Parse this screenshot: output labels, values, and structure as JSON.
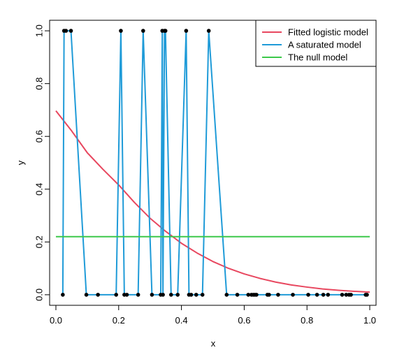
{
  "chart_data": {
    "type": "line",
    "title": "",
    "xlabel": "x",
    "ylabel": "y",
    "xlim": [
      -0.02,
      1.02
    ],
    "ylim": [
      -0.04,
      1.04
    ],
    "x_ticks": [
      "0.0",
      "0.2",
      "0.4",
      "0.6",
      "0.8",
      "1.0"
    ],
    "x_tick_values": [
      0.0,
      0.2,
      0.4,
      0.6,
      0.8,
      1.0
    ],
    "y_ticks": [
      "0.0",
      "0.2",
      "0.4",
      "0.6",
      "0.8",
      "1.0"
    ],
    "y_tick_values": [
      0.0,
      0.2,
      0.4,
      0.6,
      0.8,
      1.0
    ],
    "grid": false,
    "legend_position": "top-right",
    "points": {
      "x": [
        0.022,
        0.026,
        0.032,
        0.048,
        0.097,
        0.134,
        0.192,
        0.207,
        0.218,
        0.226,
        0.262,
        0.278,
        0.306,
        0.334,
        0.339,
        0.341,
        0.346,
        0.349,
        0.367,
        0.388,
        0.415,
        0.424,
        0.431,
        0.447,
        0.467,
        0.487,
        0.544,
        0.578,
        0.613,
        0.623,
        0.629,
        0.634,
        0.639,
        0.674,
        0.679,
        0.708,
        0.755,
        0.804,
        0.832,
        0.852,
        0.867,
        0.912,
        0.925,
        0.934,
        0.94,
        0.987,
        0.991
      ],
      "y": [
        0,
        1,
        1,
        1,
        0,
        0,
        0,
        1,
        0,
        0,
        0,
        1,
        0,
        0,
        1,
        0,
        1,
        1,
        0,
        0,
        1,
        0,
        0,
        0,
        0,
        1,
        0,
        0,
        0,
        0,
        0,
        0,
        0,
        0,
        0,
        0,
        0,
        0,
        0,
        0,
        0,
        0,
        0,
        0,
        0,
        0,
        0
      ]
    },
    "series": [
      {
        "name": "Fitted logistic model",
        "color": "#e8475f",
        "kind": "curve",
        "x": [
          0.0,
          0.05,
          0.1,
          0.15,
          0.2,
          0.25,
          0.3,
          0.35,
          0.4,
          0.45,
          0.5,
          0.55,
          0.6,
          0.65,
          0.7,
          0.75,
          0.8,
          0.85,
          0.9,
          0.95,
          1.0
        ],
        "values": [
          0.697,
          0.621,
          0.538,
          0.475,
          0.416,
          0.35,
          0.29,
          0.24,
          0.195,
          0.158,
          0.126,
          0.1,
          0.079,
          0.062,
          0.048,
          0.037,
          0.029,
          0.022,
          0.017,
          0.013,
          0.01
        ]
      },
      {
        "name": "A saturated model",
        "color": "#1f9bd8",
        "kind": "connect-points"
      },
      {
        "name": "The null model",
        "color": "#3cc84a",
        "kind": "hline",
        "x": [
          0.0,
          1.0
        ],
        "values": [
          0.22,
          0.22
        ]
      }
    ]
  }
}
